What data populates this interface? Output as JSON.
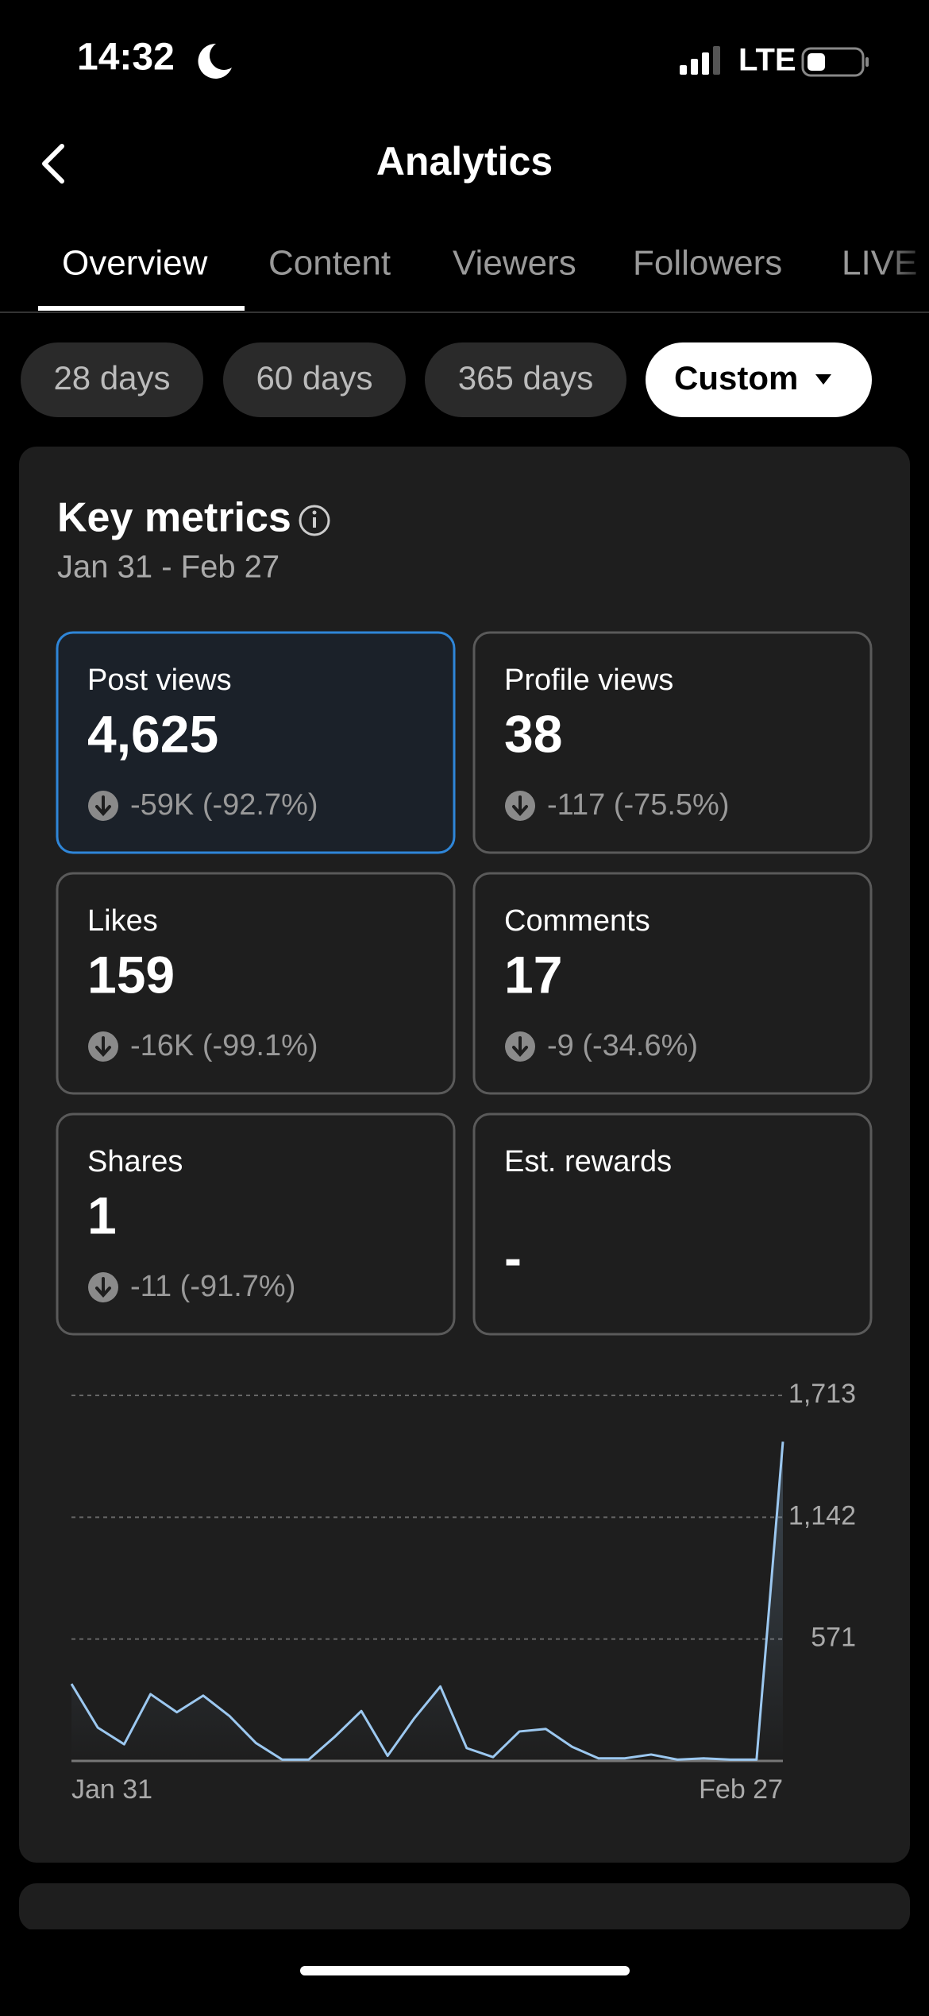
{
  "status_bar": {
    "time": "14:32",
    "network": "LTE"
  },
  "header": {
    "title": "Analytics"
  },
  "tabs": [
    "Overview",
    "Content",
    "Viewers",
    "Followers",
    "LIVE"
  ],
  "filters": [
    "28 days",
    "60 days",
    "365 days",
    "Custom"
  ],
  "key_metrics": {
    "title": "Key metrics",
    "date_range": "Jan 31 - Feb 27",
    "items": [
      {
        "label": "Post views",
        "value": "4,625",
        "change": "-59K (-92.7%)"
      },
      {
        "label": "Profile views",
        "value": "38",
        "change": "-117 (-75.5%)"
      },
      {
        "label": "Likes",
        "value": "159",
        "change": "-16K (-99.1%)"
      },
      {
        "label": "Comments",
        "value": "17",
        "change": "-9 (-34.6%)"
      },
      {
        "label": "Shares",
        "value": "1",
        "change": "-11 (-91.7%)"
      },
      {
        "label": "Est. rewards",
        "value": "-"
      }
    ]
  },
  "chart_data": {
    "type": "line",
    "color": "#9cc8f0",
    "grid": true,
    "categories": [
      "Jan 31",
      null,
      null,
      null,
      null,
      null,
      null,
      null,
      null,
      null,
      null,
      null,
      null,
      null,
      null,
      null,
      null,
      null,
      null,
      null,
      null,
      null,
      null,
      null,
      null,
      null,
      null,
      "Feb 27"
    ],
    "values": [
      361,
      156,
      78,
      313,
      228,
      306,
      210,
      84,
      6,
      6,
      114,
      234,
      24,
      198,
      349,
      60,
      18,
      138,
      150,
      66,
      12,
      12,
      30,
      6,
      12,
      6,
      6,
      1496
    ],
    "ylim": [
      0,
      1713
    ],
    "yticks": [
      571,
      {
        "value": 1142,
        "label": "1,142"
      },
      {
        "value": 1713,
        "label": "1,713"
      }
    ]
  }
}
